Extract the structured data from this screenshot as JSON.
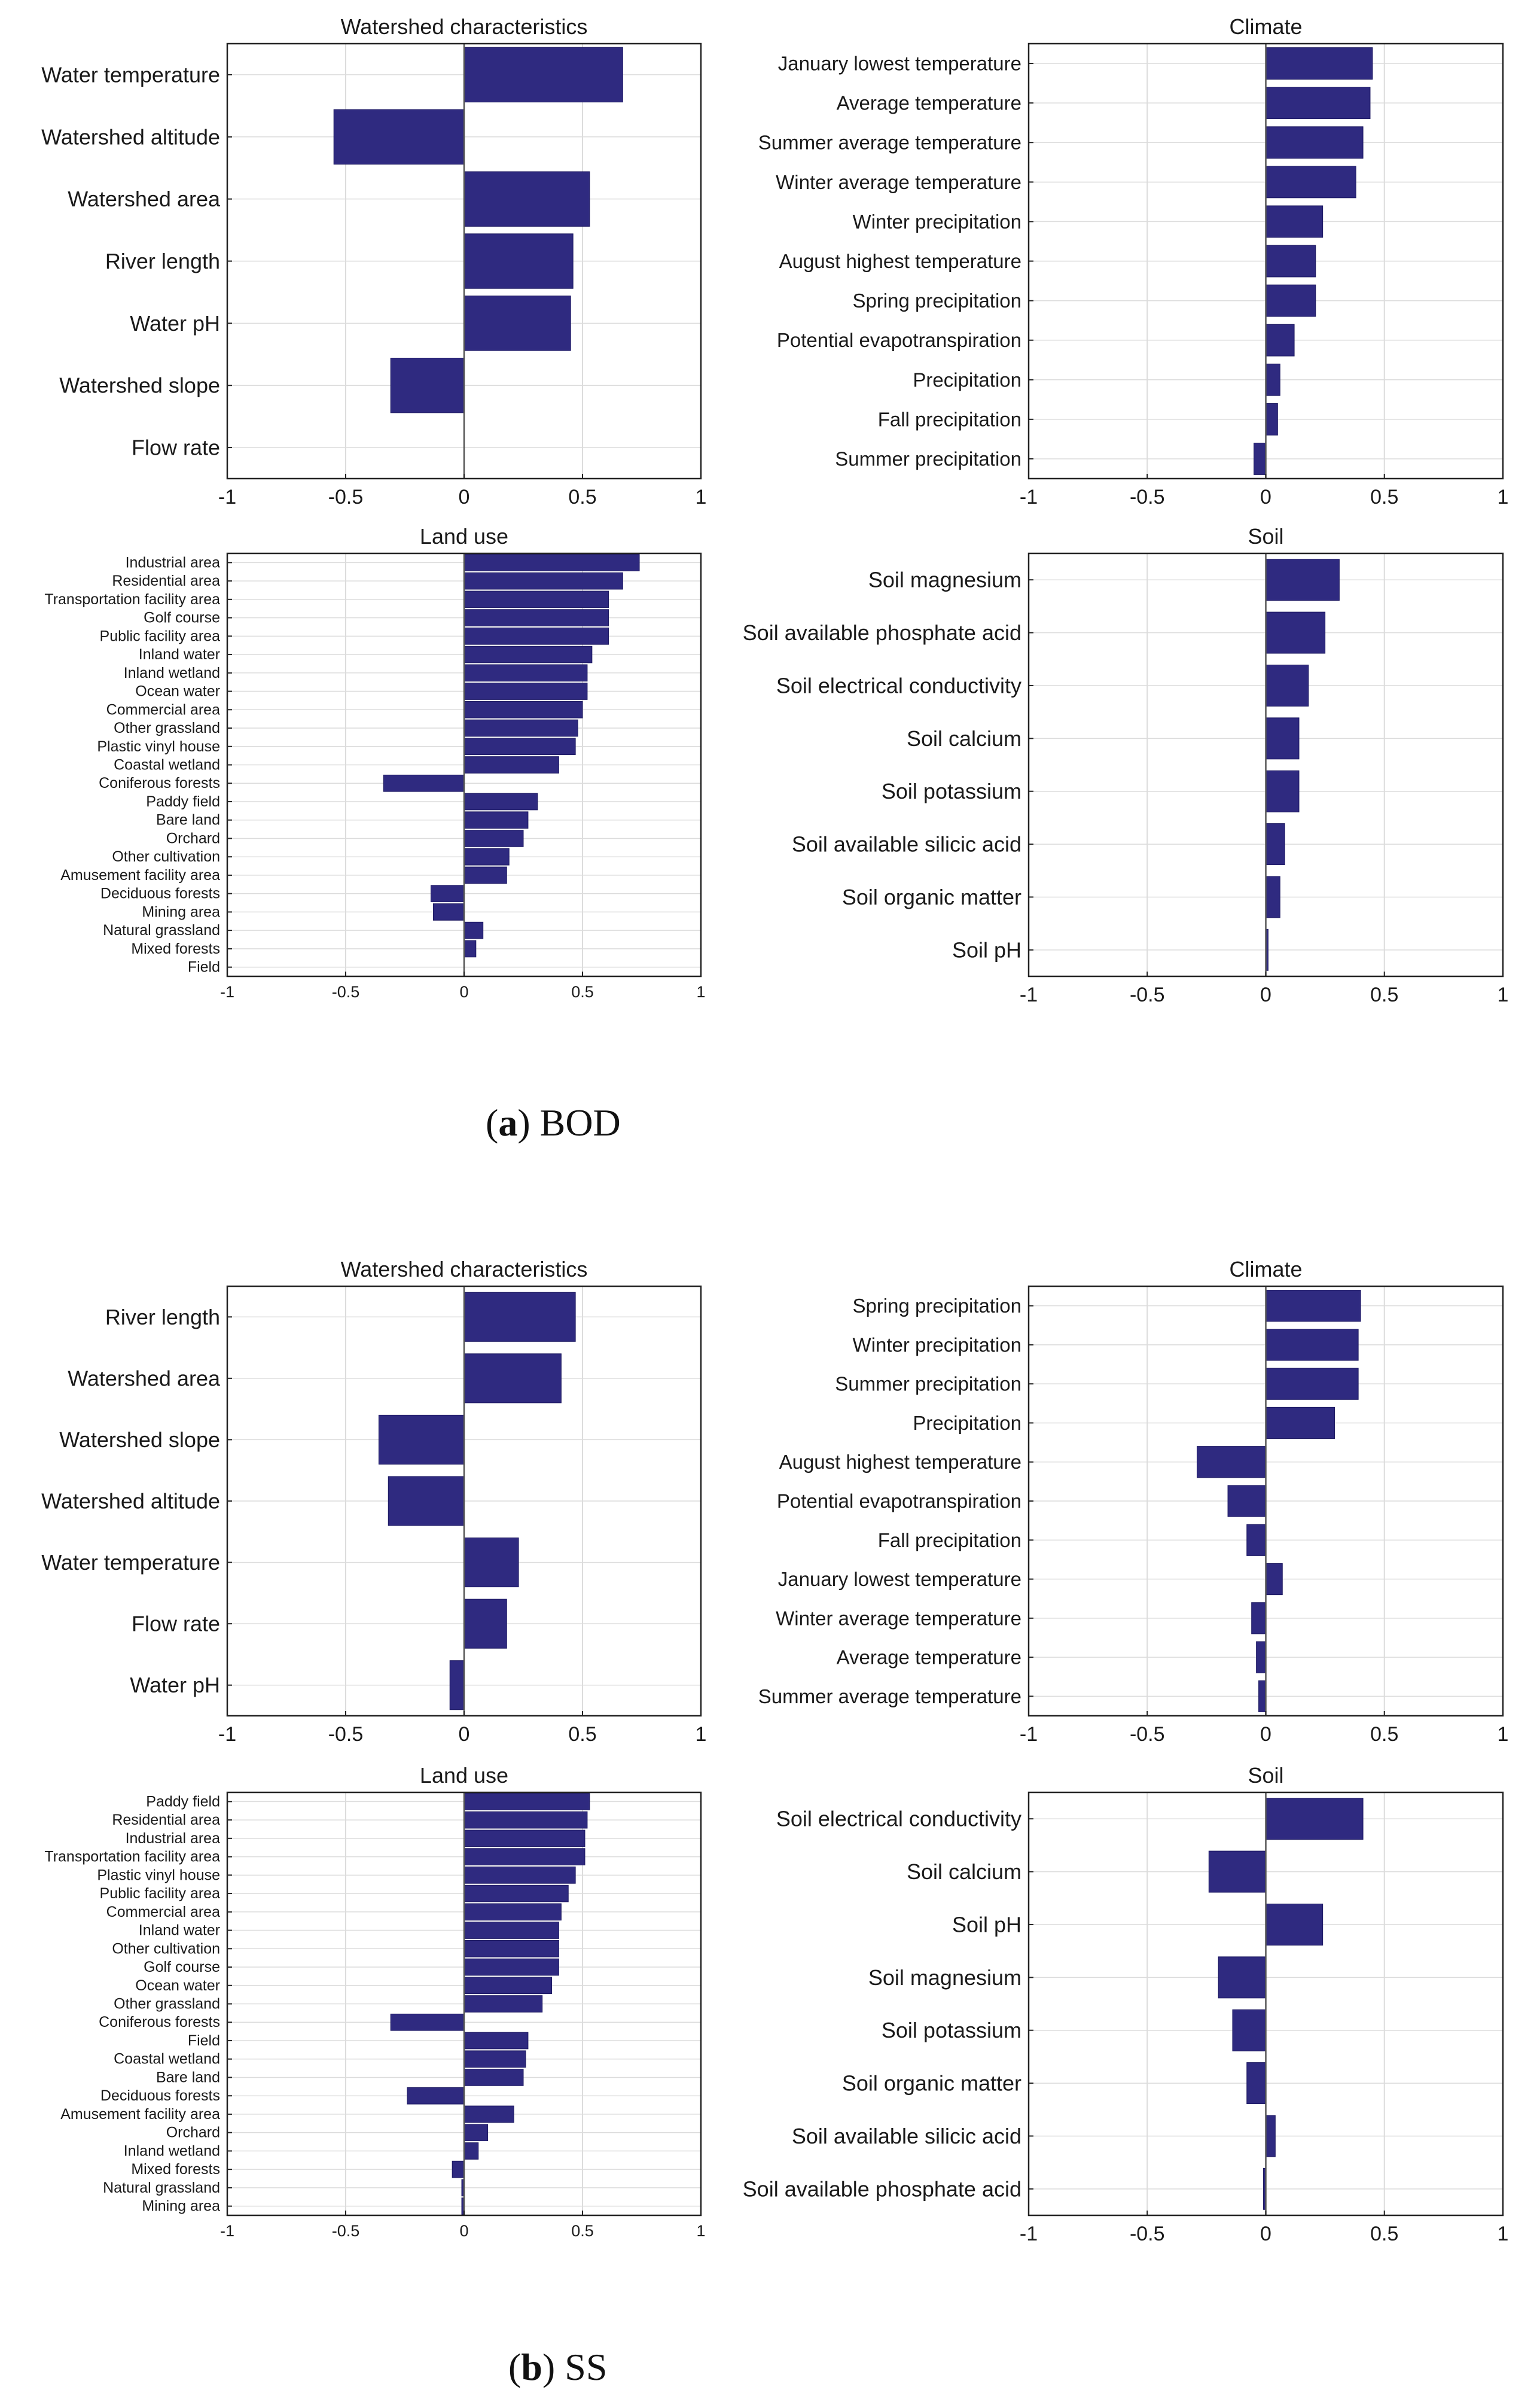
{
  "colors": {
    "bar": "#2f2a80",
    "axis": "#222222",
    "grid": "#dcdcdc",
    "zero": "#555555"
  },
  "captions": {
    "a_letter": "a",
    "a_label": "BOD",
    "b_letter": "b",
    "b_label": "SS"
  },
  "chart_data": [
    {
      "id": "a-watershed",
      "type": "bar",
      "orientation": "horizontal",
      "panel": "(a) BOD",
      "title": "Watershed characteristics",
      "xlim": [
        -1,
        1
      ],
      "xticks": [
        "-1",
        "-0.5",
        "0",
        "0.5",
        "1"
      ],
      "categories": [
        "Water temperature",
        "Watershed altitude",
        "Watershed area",
        "River length",
        "Water pH",
        "Watershed slope",
        "Flow rate"
      ],
      "values": [
        0.67,
        -0.55,
        0.53,
        0.46,
        0.45,
        -0.31,
        0.0
      ]
    },
    {
      "id": "a-climate",
      "type": "bar",
      "orientation": "horizontal",
      "panel": "(a) BOD",
      "title": "Climate",
      "xlim": [
        -1,
        1
      ],
      "xticks": [
        "-1",
        "-0.5",
        "0",
        "0.5",
        "1"
      ],
      "categories": [
        "January lowest temperature",
        "Average temperature",
        "Summer average temperature",
        "Winter average temperature",
        "Winter precipitation",
        "August highest temperature",
        "Spring precipitation",
        "Potential evapotranspiration",
        "Precipitation",
        "Fall precipitation",
        "Summer precipitation"
      ],
      "values": [
        0.45,
        0.44,
        0.41,
        0.38,
        0.24,
        0.21,
        0.21,
        0.12,
        0.06,
        0.05,
        -0.05
      ]
    },
    {
      "id": "a-landuse",
      "type": "bar",
      "orientation": "horizontal",
      "panel": "(a) BOD",
      "title": "Land use",
      "xlim": [
        -1,
        1
      ],
      "xticks": [
        "-1",
        "-0.5",
        "0",
        "0.5",
        "1"
      ],
      "categories": [
        "Industrial area",
        "Residential area",
        "Transportation facility area",
        "Golf course",
        "Public facility area",
        "Inland water",
        "Inland wetland",
        "Ocean water",
        "Commercial area",
        "Other grassland",
        "Plastic vinyl house",
        "Coastal wetland",
        "Coniferous forests",
        "Paddy field",
        "Bare land",
        "Orchard",
        "Other cultivation",
        "Amusement facility area",
        "Deciduous forests",
        "Mining area",
        "Natural grassland",
        "Mixed forests",
        "Field"
      ],
      "values": [
        0.74,
        0.67,
        0.61,
        0.61,
        0.61,
        0.54,
        0.52,
        0.52,
        0.5,
        0.48,
        0.47,
        0.4,
        -0.34,
        0.31,
        0.27,
        0.25,
        0.19,
        0.18,
        -0.14,
        -0.13,
        0.08,
        0.05,
        0.0
      ]
    },
    {
      "id": "a-soil",
      "type": "bar",
      "orientation": "horizontal",
      "panel": "(a) BOD",
      "title": "Soil",
      "xlim": [
        -1,
        1
      ],
      "xticks": [
        "-1",
        "-0.5",
        "0",
        "0.5",
        "1"
      ],
      "categories": [
        "Soil magnesium",
        "Soil available phosphate acid",
        "Soil electrical conductivity",
        "Soil calcium",
        "Soil potassium",
        "Soil available silicic acid",
        "Soil organic matter",
        "Soil pH"
      ],
      "values": [
        0.31,
        0.25,
        0.18,
        0.14,
        0.14,
        0.08,
        0.06,
        0.01
      ]
    },
    {
      "id": "b-watershed",
      "type": "bar",
      "orientation": "horizontal",
      "panel": "(b) SS",
      "title": "Watershed characteristics",
      "xlim": [
        -1,
        1
      ],
      "xticks": [
        "-1",
        "-0.5",
        "0",
        "0.5",
        "1"
      ],
      "categories": [
        "River length",
        "Watershed area",
        "Watershed slope",
        "Watershed altitude",
        "Water temperature",
        "Flow rate",
        "Water pH"
      ],
      "values": [
        0.47,
        0.41,
        -0.36,
        -0.32,
        0.23,
        0.18,
        -0.06
      ]
    },
    {
      "id": "b-climate",
      "type": "bar",
      "orientation": "horizontal",
      "panel": "(b) SS",
      "title": "Climate",
      "xlim": [
        -1,
        1
      ],
      "xticks": [
        "-1",
        "-0.5",
        "0",
        "0.5",
        "1"
      ],
      "categories": [
        "Spring precipitation",
        "Winter precipitation",
        "Summer precipitation",
        "Precipitation",
        "August highest temperature",
        "Potential evapotranspiration",
        "Fall precipitation",
        "January lowest temperature",
        "Winter average temperature",
        "Average temperature",
        "Summer average temperature"
      ],
      "values": [
        0.4,
        0.39,
        0.39,
        0.29,
        -0.29,
        -0.16,
        -0.08,
        0.07,
        -0.06,
        -0.04,
        -0.03
      ]
    },
    {
      "id": "b-landuse",
      "type": "bar",
      "orientation": "horizontal",
      "panel": "(b) SS",
      "title": "Land use",
      "xlim": [
        -1,
        1
      ],
      "xticks": [
        "-1",
        "-0.5",
        "0",
        "0.5",
        "1"
      ],
      "categories": [
        "Paddy field",
        "Residential area",
        "Industrial area",
        "Transportation facility area",
        "Plastic vinyl house",
        "Public facility area",
        "Commercial area",
        "Inland water",
        "Other cultivation",
        "Golf course",
        "Ocean water",
        "Other grassland",
        "Coniferous forests",
        "Field",
        "Coastal wetland",
        "Bare land",
        "Deciduous forests",
        "Amusement facility area",
        "Orchard",
        "Inland wetland",
        "Mixed forests",
        "Natural grassland",
        "Mining area"
      ],
      "values": [
        0.53,
        0.52,
        0.51,
        0.51,
        0.47,
        0.44,
        0.41,
        0.4,
        0.4,
        0.4,
        0.37,
        0.33,
        -0.31,
        0.27,
        0.26,
        0.25,
        -0.24,
        0.21,
        0.1,
        0.06,
        -0.05,
        -0.01,
        -0.01
      ]
    },
    {
      "id": "b-soil",
      "type": "bar",
      "orientation": "horizontal",
      "panel": "(b) SS",
      "title": "Soil",
      "xlim": [
        -1,
        1
      ],
      "xticks": [
        "-1",
        "-0.5",
        "0",
        "0.5",
        "1"
      ],
      "categories": [
        "Soil electrical conductivity",
        "Soil calcium",
        "Soil pH",
        "Soil magnesium",
        "Soil potassium",
        "Soil organic matter",
        "Soil available silicic acid",
        "Soil available phosphate acid"
      ],
      "values": [
        0.41,
        -0.24,
        0.24,
        -0.2,
        -0.14,
        -0.08,
        0.04,
        -0.01
      ]
    }
  ]
}
